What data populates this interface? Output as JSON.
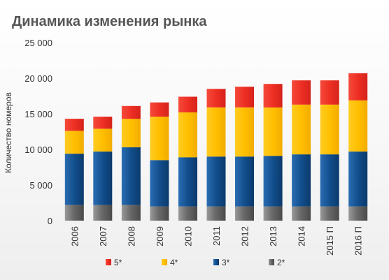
{
  "chart_data": {
    "type": "bar",
    "stacked": true,
    "title": "Динамика изменения рынка",
    "ylabel": "Количество номеров",
    "xlabel": "",
    "ylim": [
      0,
      25000
    ],
    "yticks": [
      0,
      5000,
      10000,
      15000,
      20000,
      25000
    ],
    "ytick_labels": [
      "0",
      "5 000",
      "10 000",
      "15 000",
      "20 000",
      "25 000"
    ],
    "grid": false,
    "legend_position": "bottom",
    "categories": [
      "2006",
      "2007",
      "2008",
      "2009",
      "2010",
      "2011",
      "2012",
      "2013",
      "2014",
      "2015 П",
      "2016 П"
    ],
    "series": [
      {
        "name": "2*",
        "color": "#6d6d6d",
        "values": [
          2200,
          2200,
          2200,
          2000,
          2000,
          2000,
          2000,
          2000,
          2000,
          2000,
          2000
        ]
      },
      {
        "name": "3*",
        "color": "#124e8c",
        "values": [
          7200,
          7500,
          8100,
          6500,
          6900,
          7000,
          7000,
          7100,
          7300,
          7300,
          7700
        ]
      },
      {
        "name": "4*",
        "color": "#ffbf00",
        "values": [
          3200,
          3200,
          4000,
          6100,
          6300,
          6900,
          6900,
          6800,
          7000,
          7000,
          7200
        ]
      },
      {
        "name": "5*",
        "color": "#ee2f24",
        "values": [
          1700,
          1700,
          1800,
          2000,
          2200,
          2600,
          2900,
          3300,
          3400,
          3400,
          3800
        ]
      }
    ],
    "legend_order": [
      "5*",
      "4*",
      "3*",
      "2*"
    ]
  }
}
